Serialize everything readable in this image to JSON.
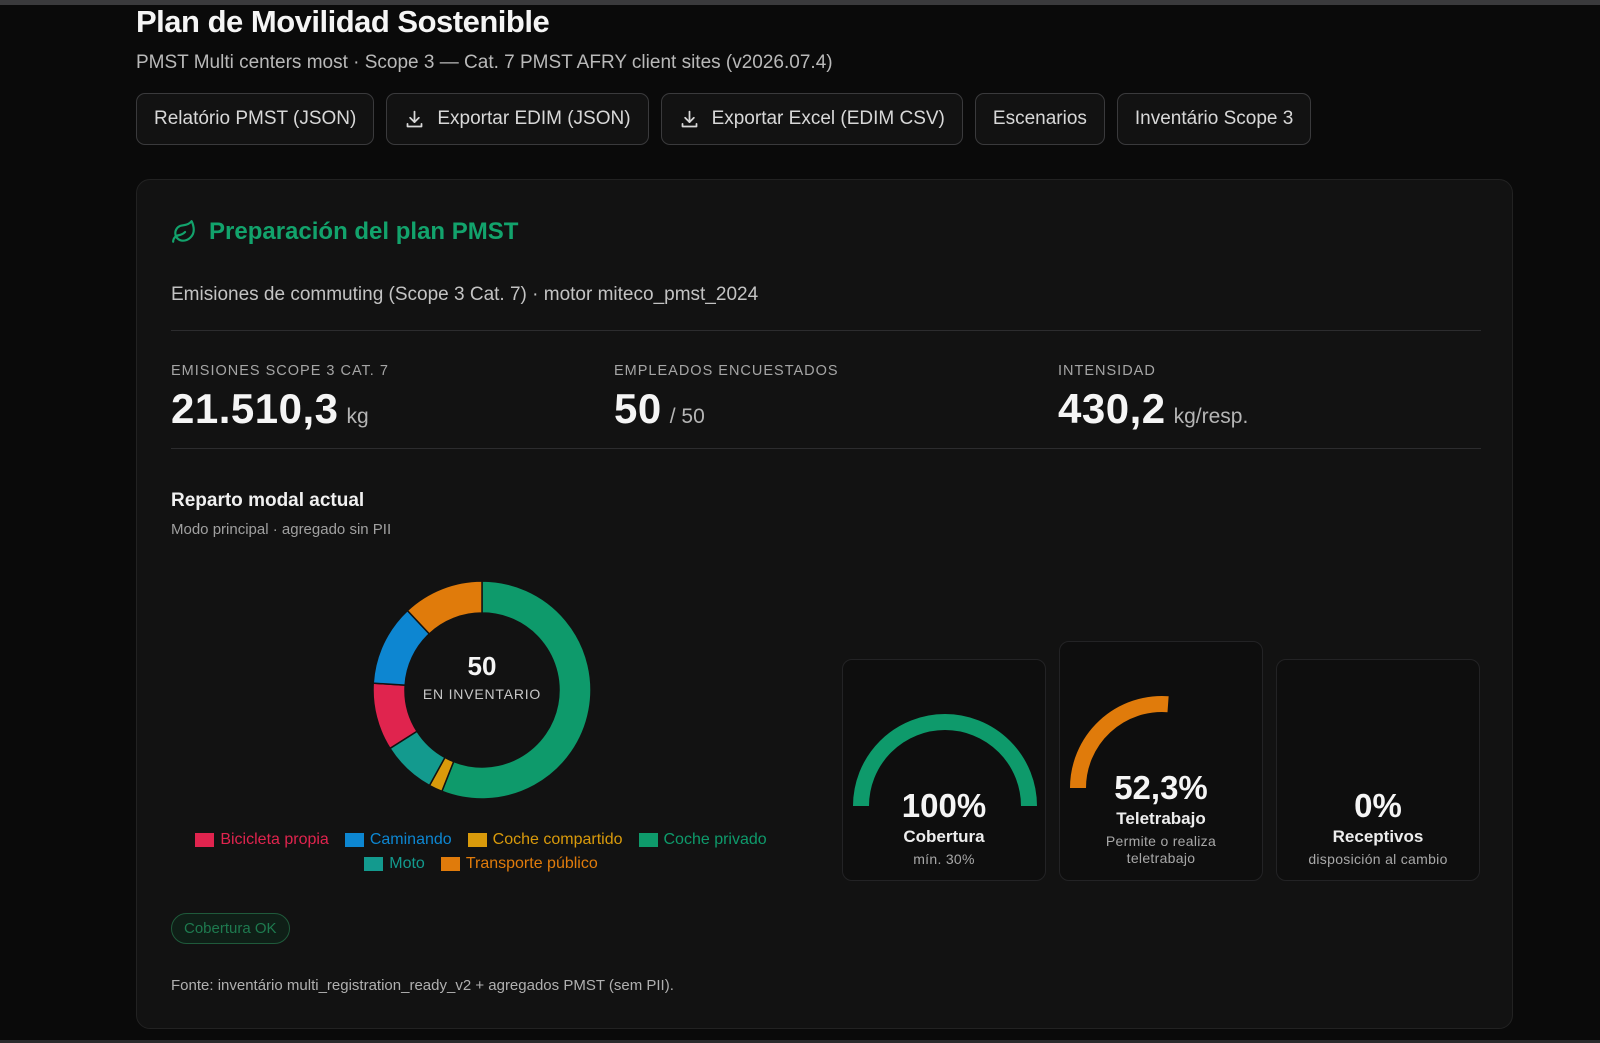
{
  "header": {
    "title": "Plan de Movilidad Sostenible",
    "subtitle": "PMST Multi centers most · Scope 3 — Cat. 7 PMST AFRY client sites (v2026.07.4)"
  },
  "toolbar": {
    "buttons": [
      {
        "label": "Relatório PMST (JSON)",
        "icon": ""
      },
      {
        "label": "Exportar EDIM (JSON)",
        "icon": "download-icon"
      },
      {
        "label": "Exportar Excel (EDIM CSV)",
        "icon": "download-icon"
      },
      {
        "label": "Escenarios",
        "icon": ""
      },
      {
        "label": "Inventário Scope 3",
        "icon": ""
      }
    ]
  },
  "card": {
    "icon": "leaf-icon",
    "title": "Preparación del plan PMST",
    "description": "Emisiones de commuting (Scope 3 Cat. 7) · motor miteco_pmst_2024",
    "kpis": [
      {
        "label": "EMISIONES SCOPE 3 CAT. 7",
        "value": "21.510,3",
        "unit": "kg"
      },
      {
        "label": "EMPLEADOS ENCUESTADOS",
        "value": "50",
        "unit": "/ 50"
      },
      {
        "label": "INTENSIDAD",
        "value": "430,2",
        "unit": "kg/resp."
      }
    ],
    "modal_split": {
      "title": "Reparto modal actual",
      "subtitle": "Modo principal · agregado sin PII",
      "center_value": "50",
      "center_caption": "EN INVENTARIO"
    },
    "gauges": [
      {
        "value": "100%",
        "fraction": 1.0,
        "label": "Cobertura",
        "note": "mín. 30%",
        "color": "#0e9a6b"
      },
      {
        "value": "52,3%",
        "fraction": 0.523,
        "label": "Teletrabajo",
        "note": "Permite o realiza teletrabajo",
        "color": "#e07b0b"
      },
      {
        "value": "0%",
        "fraction": 0.0,
        "label": "Receptivos",
        "note": "disposición al cambio",
        "color": "#e07b0b"
      }
    ],
    "status_badge": "Cobertura OK",
    "footnote": "Fonte: inventário multi_registration_ready_v2 + agregados PMST (sem PII)."
  },
  "chart_data": {
    "type": "pie",
    "donut": true,
    "total": 50,
    "categories": [
      "Coche privado",
      "Coche compartido",
      "Moto",
      "Bicicleta propia",
      "Caminando",
      "Transporte público"
    ],
    "values": [
      28,
      1,
      4,
      5,
      6,
      6
    ],
    "colors": [
      "#0e9a6b",
      "#d99a0b",
      "#139a8e",
      "#e0244e",
      "#0d86d1",
      "#e07b0b"
    ],
    "legend": [
      {
        "label": "Bicicleta propia",
        "color": "#e0244e"
      },
      {
        "label": "Caminando",
        "color": "#0d86d1"
      },
      {
        "label": "Coche compartido",
        "color": "#d99a0b"
      },
      {
        "label": "Coche privado",
        "color": "#0e9a6b"
      },
      {
        "label": "Moto",
        "color": "#139a8e"
      },
      {
        "label": "Transporte público",
        "color": "#e07b0b"
      }
    ],
    "legend_position": "bottom"
  }
}
